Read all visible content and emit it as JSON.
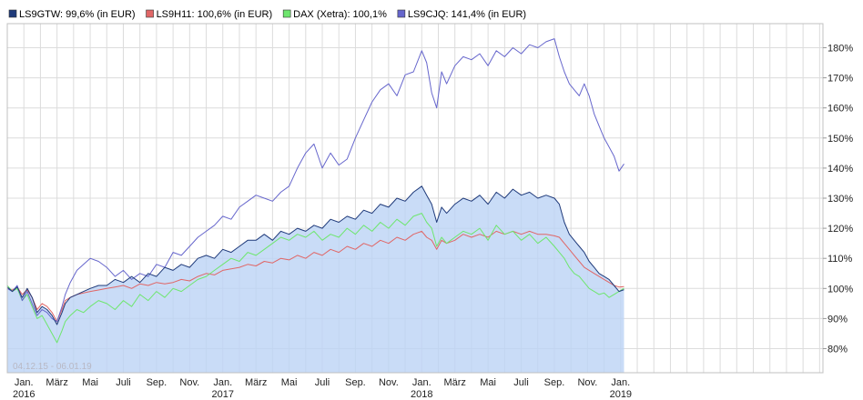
{
  "chart_data": {
    "type": "line",
    "date_range": "04.12.15 - 06.01.19",
    "ylim": [
      72,
      188
    ],
    "y_ticks": [
      {
        "value": 80,
        "label": "80%"
      },
      {
        "value": 90,
        "label": "90%"
      },
      {
        "value": 100,
        "label": "100%"
      },
      {
        "value": 110,
        "label": "110%"
      },
      {
        "value": 120,
        "label": "120%"
      },
      {
        "value": 130,
        "label": "130%"
      },
      {
        "value": 140,
        "label": "140%"
      },
      {
        "value": 150,
        "label": "150%"
      },
      {
        "value": 160,
        "label": "160%"
      },
      {
        "value": 170,
        "label": "170%"
      },
      {
        "value": 180,
        "label": "180%"
      }
    ],
    "xlim": [
      0,
      49.2
    ],
    "x_ticks": [
      {
        "month": 1,
        "label": "Jan.",
        "year": "2016"
      },
      {
        "month": 3,
        "label": "März",
        "year": ""
      },
      {
        "month": 5,
        "label": "Mai",
        "year": ""
      },
      {
        "month": 7,
        "label": "Juli",
        "year": ""
      },
      {
        "month": 9,
        "label": "Sep.",
        "year": ""
      },
      {
        "month": 11,
        "label": "Nov.",
        "year": ""
      },
      {
        "month": 13,
        "label": "Jan.",
        "year": "2017"
      },
      {
        "month": 15,
        "label": "März",
        "year": ""
      },
      {
        "month": 17,
        "label": "Mai",
        "year": ""
      },
      {
        "month": 19,
        "label": "Juli",
        "year": ""
      },
      {
        "month": 21,
        "label": "Sep.",
        "year": ""
      },
      {
        "month": 23,
        "label": "Nov.",
        "year": ""
      },
      {
        "month": 25,
        "label": "Jan.",
        "year": "2018"
      },
      {
        "month": 27,
        "label": "März",
        "year": ""
      },
      {
        "month": 29,
        "label": "Mai",
        "year": ""
      },
      {
        "month": 31,
        "label": "Juli",
        "year": ""
      },
      {
        "month": 33,
        "label": "Sep.",
        "year": ""
      },
      {
        "month": 35,
        "label": "Nov.",
        "year": ""
      },
      {
        "month": 37,
        "label": "Jan.",
        "year": "2019"
      }
    ],
    "series": [
      {
        "name": "LS9GTW",
        "legend": "LS9GTW: 99,6% (in EUR)",
        "color": "#1f3a7a",
        "fill": true,
        "x": [
          0,
          0.3,
          0.6,
          0.9,
          1.2,
          1.5,
          1.8,
          2.1,
          2.4,
          2.7,
          3,
          3.3,
          3.5,
          3.8,
          4.2,
          4.6,
          5,
          5.5,
          6,
          6.5,
          7,
          7.5,
          8,
          8.5,
          9,
          9.5,
          10,
          10.5,
          11,
          11.5,
          12,
          12.5,
          13,
          13.5,
          14,
          14.5,
          15,
          15.5,
          16,
          16.5,
          17,
          17.5,
          18,
          18.5,
          19,
          19.5,
          20,
          20.5,
          21,
          21.5,
          22,
          22.5,
          23,
          23.5,
          24,
          24.5,
          25,
          25.3,
          25.6,
          25.9,
          26.2,
          26.5,
          27,
          27.5,
          28,
          28.5,
          29,
          29.5,
          30,
          30.5,
          31,
          31.5,
          32,
          32.5,
          33,
          33.3,
          33.6,
          33.9,
          34.2,
          34.5,
          34.8,
          35.1,
          35.4,
          35.7,
          36,
          36.3,
          36.6,
          36.9,
          37.2
        ],
        "y": [
          100.5,
          99,
          100.5,
          97,
          100,
          97,
          92,
          94,
          93,
          91,
          88,
          92,
          95,
          97,
          98,
          99,
          100,
          101,
          101,
          103,
          102,
          104,
          102,
          105,
          104,
          107,
          106,
          108,
          107,
          110,
          111,
          110,
          113,
          112,
          114,
          116,
          116,
          118,
          116,
          119,
          118,
          120,
          119,
          121,
          120,
          123,
          122,
          124,
          123,
          126,
          125,
          128,
          127,
          130,
          129,
          132,
          134,
          131,
          128,
          122,
          127,
          125,
          128,
          130,
          129,
          131,
          128,
          132,
          130,
          133,
          131,
          132,
          130,
          131,
          130,
          128,
          122,
          118,
          116,
          114,
          112,
          109,
          107,
          105,
          104,
          103,
          101,
          99,
          99.6
        ]
      },
      {
        "name": "LS9H11",
        "legend": "LS9H11: 100,6% (in EUR)",
        "color": "#e06666",
        "fill": false,
        "x": [
          0,
          0.3,
          0.6,
          0.9,
          1.2,
          1.5,
          1.8,
          2.1,
          2.4,
          2.7,
          3,
          3.3,
          3.5,
          3.8,
          4.2,
          4.6,
          5,
          5.5,
          6,
          6.5,
          7,
          7.5,
          8,
          8.5,
          9,
          9.5,
          10,
          10.5,
          11,
          11.5,
          12,
          12.5,
          13,
          13.5,
          14,
          14.5,
          15,
          15.5,
          16,
          16.5,
          17,
          17.5,
          18,
          18.5,
          19,
          19.5,
          20,
          20.5,
          21,
          21.5,
          22,
          22.5,
          23,
          23.5,
          24,
          24.5,
          25,
          25.3,
          25.6,
          25.9,
          26.2,
          26.5,
          27,
          27.5,
          28,
          28.5,
          29,
          29.5,
          30,
          30.5,
          31,
          31.5,
          32,
          32.5,
          33,
          33.3,
          33.6,
          33.9,
          34.2,
          34.5,
          34.8,
          35.1,
          35.4,
          35.7,
          36,
          36.3,
          36.6,
          36.9,
          37.2
        ],
        "y": [
          100,
          99.5,
          100.5,
          98,
          99.5,
          97,
          93,
          95,
          94,
          92,
          89,
          93,
          96,
          97,
          98,
          98.5,
          99,
          99.5,
          100,
          100.5,
          101,
          100,
          101.5,
          101,
          102,
          101.5,
          102,
          103,
          102.5,
          104,
          105,
          104.5,
          106,
          106.5,
          107,
          108,
          107.5,
          109,
          108.5,
          110,
          109.5,
          111,
          110,
          112,
          111,
          113,
          112,
          114,
          113,
          115,
          114,
          116,
          115,
          117,
          116,
          118,
          119,
          117,
          116,
          113,
          116,
          115,
          116,
          118,
          117,
          118,
          117,
          119,
          118,
          119,
          118,
          119,
          118,
          118,
          117.5,
          117,
          115,
          113,
          111,
          109,
          107,
          106,
          105,
          104,
          103,
          102,
          101,
          100.5,
          100.6
        ]
      },
      {
        "name": "DAX (Xetra)",
        "legend": "DAX (Xetra): 100,1%",
        "color": "#6ee66e",
        "fill": false,
        "x": [
          0,
          0.3,
          0.6,
          0.9,
          1.2,
          1.5,
          1.8,
          2.1,
          2.4,
          2.7,
          3,
          3.3,
          3.5,
          3.8,
          4.2,
          4.6,
          5,
          5.5,
          6,
          6.5,
          7,
          7.5,
          8,
          8.5,
          9,
          9.5,
          10,
          10.5,
          11,
          11.5,
          12,
          12.5,
          13,
          13.5,
          14,
          14.5,
          15,
          15.5,
          16,
          16.5,
          17,
          17.5,
          18,
          18.5,
          19,
          19.5,
          20,
          20.5,
          21,
          21.5,
          22,
          22.5,
          23,
          23.5,
          24,
          24.5,
          25,
          25.3,
          25.6,
          25.9,
          26.2,
          26.5,
          27,
          27.5,
          28,
          28.5,
          29,
          29.5,
          30,
          30.5,
          31,
          31.5,
          32,
          32.5,
          33,
          33.3,
          33.6,
          33.9,
          34.2,
          34.5,
          34.8,
          35.1,
          35.4,
          35.7,
          36,
          36.3,
          36.6,
          36.9,
          37.2
        ],
        "y": [
          101,
          99,
          100,
          96,
          98,
          94,
          90,
          91,
          88,
          85,
          82,
          86,
          89,
          91,
          93,
          92,
          94,
          96,
          95,
          93,
          96,
          94,
          98,
          96,
          99,
          97,
          100,
          99,
          101,
          103,
          104,
          106,
          108,
          110,
          109,
          112,
          111,
          113,
          115,
          117,
          116,
          118,
          117,
          119,
          116,
          118,
          117,
          120,
          118,
          121,
          119,
          122,
          120,
          123,
          121,
          124,
          125,
          122,
          120,
          114,
          117,
          115,
          117,
          119,
          118,
          120,
          116,
          121,
          118,
          119,
          116,
          118,
          115,
          117,
          114,
          112,
          110,
          107,
          105,
          104,
          102,
          100,
          99,
          98,
          98.5,
          97,
          98,
          99,
          100.1
        ]
      },
      {
        "name": "LS9CJQ",
        "legend": "LS9CJQ: 141,4% (in EUR)",
        "color": "#6666cc",
        "fill": false,
        "x": [
          0,
          0.3,
          0.6,
          0.9,
          1.2,
          1.5,
          1.8,
          2.1,
          2.4,
          2.7,
          3,
          3.3,
          3.5,
          3.8,
          4.2,
          4.6,
          5,
          5.5,
          6,
          6.5,
          7,
          7.5,
          8,
          8.5,
          9,
          9.5,
          10,
          10.5,
          11,
          11.5,
          12,
          12.5,
          13,
          13.5,
          14,
          14.5,
          15,
          15.5,
          16,
          16.5,
          17,
          17.5,
          18,
          18.5,
          19,
          19.5,
          20,
          20.5,
          21,
          21.5,
          22,
          22.5,
          23,
          23.5,
          24,
          24.5,
          25,
          25.3,
          25.6,
          25.9,
          26.2,
          26.5,
          27,
          27.5,
          28,
          28.5,
          29,
          29.5,
          30,
          30.5,
          31,
          31.5,
          32,
          32.5,
          33,
          33.3,
          33.6,
          33.9,
          34.2,
          34.5,
          34.8,
          35.1,
          35.4,
          35.7,
          36,
          36.3,
          36.6,
          36.9,
          37.2
        ],
        "y": [
          100,
          99,
          101,
          96,
          99,
          95,
          91,
          93,
          92,
          90,
          89,
          94,
          98,
          102,
          106,
          108,
          110,
          109,
          107,
          104,
          106,
          103,
          105,
          104,
          108,
          107,
          112,
          111,
          114,
          117,
          119,
          121,
          124,
          123,
          127,
          129,
          131,
          130,
          129,
          132,
          134,
          140,
          145,
          148,
          140,
          145,
          141,
          143,
          150,
          156,
          162,
          166,
          168,
          164,
          171,
          172,
          179,
          175,
          165,
          160,
          172,
          168,
          174,
          177,
          176,
          178,
          174,
          179,
          177,
          180,
          178,
          181,
          180,
          182,
          183,
          177,
          172,
          168,
          166,
          164,
          168,
          164,
          158,
          154,
          150,
          147,
          144,
          139,
          141.4
        ]
      }
    ]
  }
}
